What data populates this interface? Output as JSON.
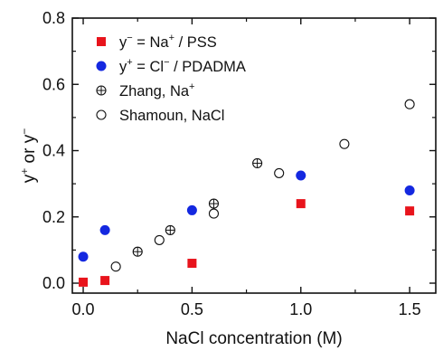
{
  "chart_data": {
    "type": "scatter",
    "xlabel": "NaCl concentration (M)",
    "ylabel": {
      "main": "y",
      "sup1": "+",
      "mid": " or y",
      "sup2": "−"
    },
    "xlim": [
      -0.05,
      1.62
    ],
    "ylim": [
      -0.03,
      0.8
    ],
    "xticks": [
      0.0,
      0.5,
      1.0,
      1.5
    ],
    "xtick_labels": [
      "0.0",
      "0.5",
      "1.0",
      "1.5"
    ],
    "yticks": [
      0.0,
      0.2,
      0.4,
      0.6,
      0.8
    ],
    "ytick_labels": [
      "0.0",
      "0.2",
      "0.4",
      "0.6",
      "0.8"
    ],
    "grid": false,
    "legend_position": "top-left",
    "series": [
      {
        "name": "y− = Na+ / PSS",
        "legend_parts": [
          "y",
          "−",
          " = Na",
          "+",
          " / PSS"
        ],
        "marker": "square",
        "color": "#e8141c",
        "x": [
          0.0,
          0.1,
          0.5,
          1.0,
          1.5
        ],
        "y": [
          0.003,
          0.008,
          0.06,
          0.24,
          0.218
        ]
      },
      {
        "name": "y+ = Cl− / PDADMA",
        "legend_parts": [
          "y",
          "+",
          " = Cl",
          "−",
          " / PDADMA"
        ],
        "marker": "circle-filled",
        "color": "#1428e0",
        "x": [
          0.0,
          0.1,
          0.5,
          1.0,
          1.5
        ],
        "y": [
          0.08,
          0.16,
          0.22,
          0.325,
          0.28
        ]
      },
      {
        "name": "Zhang, Na+",
        "legend_parts": [
          "Zhang, Na",
          "+",
          "",
          "",
          ""
        ],
        "marker": "circle-cross",
        "color": "#111111",
        "x": [
          0.25,
          0.4,
          0.6,
          0.8
        ],
        "y": [
          0.095,
          0.16,
          0.24,
          0.362
        ]
      },
      {
        "name": "Shamoun, NaCl",
        "legend_parts": [
          "Shamoun, NaCl",
          "",
          "",
          "",
          ""
        ],
        "marker": "circle-open",
        "color": "#111111",
        "x": [
          0.15,
          0.35,
          0.6,
          0.9,
          1.2,
          1.5
        ],
        "y": [
          0.05,
          0.13,
          0.21,
          0.332,
          0.42,
          0.54
        ]
      }
    ]
  }
}
